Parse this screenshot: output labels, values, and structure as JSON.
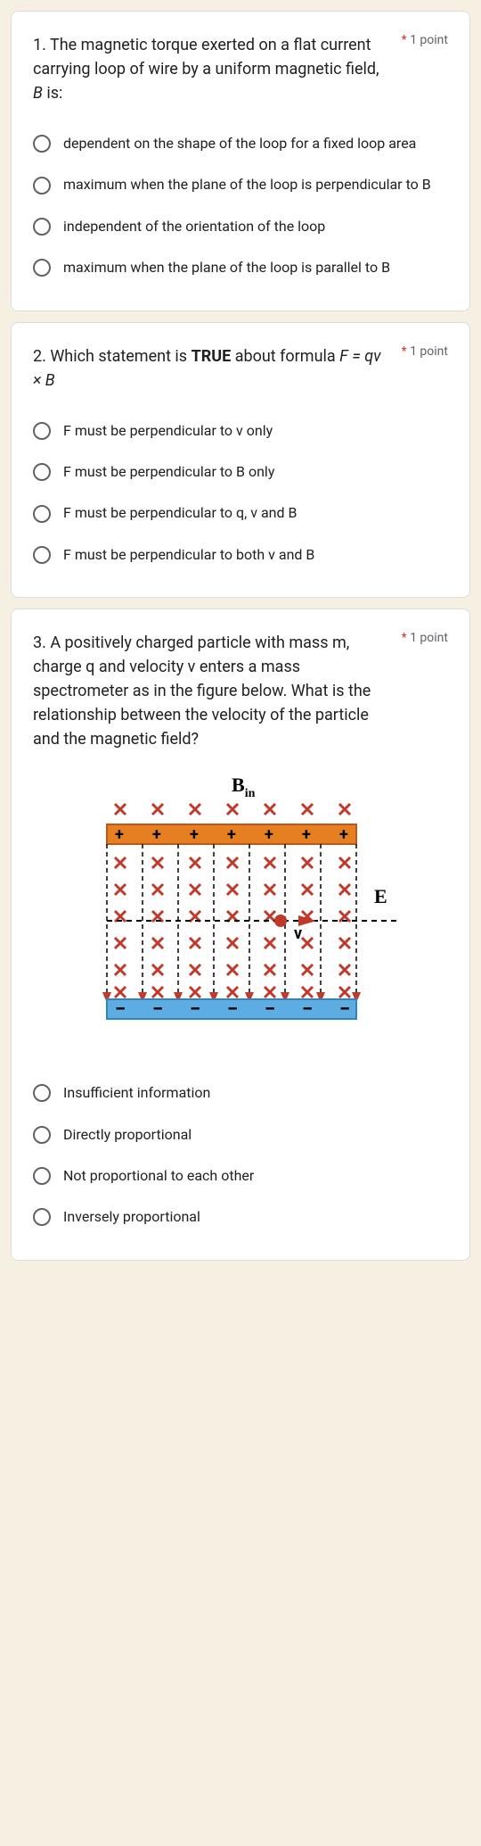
{
  "points_label": "1 point",
  "required_mark": "*",
  "questions": [
    {
      "text": "1. The magnetic torque exerted on a flat current carrying loop of wire by a uniform magnetic field, ",
      "text_italic": "B",
      "text_after": " is:",
      "options": [
        "dependent on the shape of the loop for a fixed loop area",
        "maximum when the plane of the loop is perpendicular to B",
        "independent of the orientation of the loop",
        "maximum when the plane of the loop is parallel to B"
      ]
    },
    {
      "text": "2. Which statement is ",
      "text_bold": "TRUE",
      "text_after": " about formula ",
      "text_italic": "F = qv × B",
      "options": [
        "F must be perpendicular to v only",
        "F must be perpendicular to B only",
        "F must be perpendicular to q, v and B",
        "F must be perpendicular to both v and B"
      ]
    },
    {
      "text": "3. A positively charged particle with mass m, charge q and velocity v enters a mass spectrometer as in the figure below. What is the relationship between the velocity of the particle and the magnetic field?",
      "options": [
        "Insufficient information",
        "Directly proportional",
        "Not proportional to each other",
        "Inversely proportional"
      ]
    }
  ],
  "diagram": {
    "label_B": "B",
    "label_B_sub": "in",
    "label_E": "E",
    "label_v": "v",
    "colors": {
      "top_plate": "#e67e22",
      "top_plate_dark": "#c0571a",
      "bottom_plate": "#5dade2",
      "bottom_plate_dark": "#2e86c1",
      "x_mark": "#c0392b",
      "arrow": "#c0392b",
      "plus": "#000000",
      "minus": "#000000"
    },
    "rows": 8,
    "cols": 7
  }
}
